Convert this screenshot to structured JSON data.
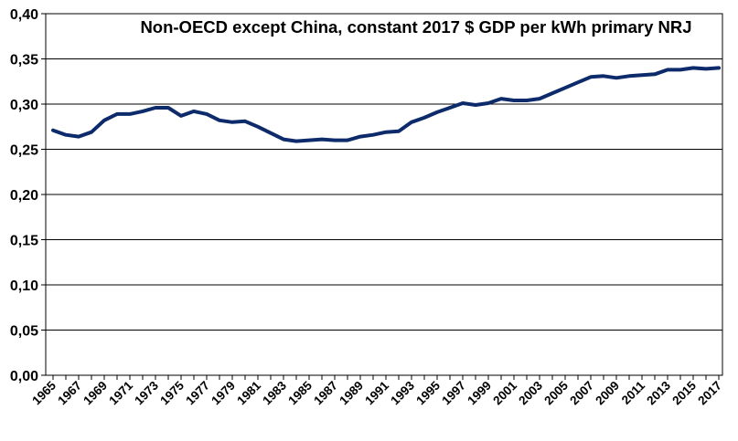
{
  "chart_data": {
    "type": "line",
    "title": "Non-OECD except China, constant 2017 $ GDP per kWh primary NRJ",
    "xlabel": "",
    "ylabel": "",
    "ylim": [
      0,
      0.4
    ],
    "yticks": [
      "0,00",
      "0,05",
      "0,10",
      "0,15",
      "0,20",
      "0,25",
      "0,30",
      "0,35",
      "0,40"
    ],
    "x": [
      1965,
      1966,
      1967,
      1968,
      1969,
      1970,
      1971,
      1972,
      1973,
      1974,
      1975,
      1976,
      1977,
      1978,
      1979,
      1980,
      1981,
      1982,
      1983,
      1984,
      1985,
      1986,
      1987,
      1988,
      1989,
      1990,
      1991,
      1992,
      1993,
      1994,
      1995,
      1996,
      1997,
      1998,
      1999,
      2000,
      2001,
      2002,
      2003,
      2004,
      2005,
      2006,
      2007,
      2008,
      2009,
      2010,
      2011,
      2012,
      2013,
      2014,
      2015,
      2016,
      2017
    ],
    "xtick_labels": [
      "1965",
      "1967",
      "1969",
      "1971",
      "1973",
      "1975",
      "1977",
      "1979",
      "1981",
      "1983",
      "1985",
      "1987",
      "1989",
      "1991",
      "1993",
      "1995",
      "1997",
      "1999",
      "2001",
      "2003",
      "2005",
      "2007",
      "2009",
      "2011",
      "2013",
      "2015",
      "2017"
    ],
    "series": [
      {
        "values": [
          0.271,
          0.266,
          0.264,
          0.269,
          0.282,
          0.289,
          0.289,
          0.292,
          0.296,
          0.296,
          0.287,
          0.292,
          0.289,
          0.282,
          0.28,
          0.281,
          0.275,
          0.268,
          0.261,
          0.259,
          0.26,
          0.261,
          0.26,
          0.26,
          0.264,
          0.266,
          0.269,
          0.27,
          0.28,
          0.285,
          0.291,
          0.296,
          0.301,
          0.299,
          0.301,
          0.306,
          0.304,
          0.304,
          0.306,
          0.312,
          0.318,
          0.324,
          0.33,
          0.331,
          0.329,
          0.331,
          0.332,
          0.333,
          0.338,
          0.338,
          0.34,
          0.339,
          0.34
        ],
        "color": "#0d2a6b"
      }
    ],
    "grid": "horizontal",
    "legend": "none"
  }
}
